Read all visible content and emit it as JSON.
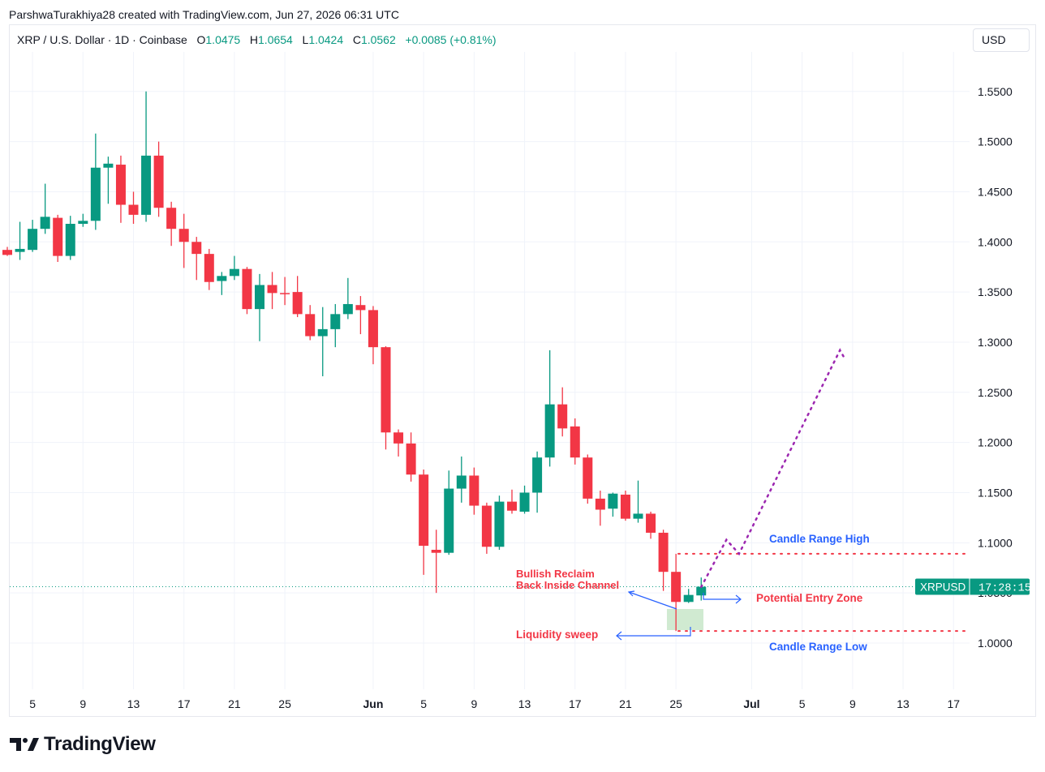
{
  "caption": "ParshwaTurakhiya28 created with TradingView.com, Jun 27, 2026 06:31 UTC",
  "legend": {
    "symbol": "XRP / U.S. Dollar · 1D · Coinbase",
    "o_label": "O",
    "o_value": "1.0475",
    "h_label": "H",
    "h_value": "1.0654",
    "l_label": "L",
    "l_value": "1.0424",
    "c_label": "C",
    "c_value": "1.0562",
    "change": "+0.0085 (+0.81%)"
  },
  "currency": "USD",
  "brand": "TradingView",
  "colors": {
    "up": "#089981",
    "down": "#f23645",
    "grid": "#f0f3fa",
    "axis_text": "#131722",
    "annotation_red": "#f23645",
    "annotation_blue": "#2962ff",
    "projection": "#9c27b0",
    "zone_fill": "#c8e6c9"
  },
  "chart_data": {
    "type": "candlestick",
    "ylim": [
      0.9,
      1.6
    ],
    "y_ticks": [
      "1.0000",
      "1.0500",
      "1.1000",
      "1.1500",
      "1.2000",
      "1.2500",
      "1.3000",
      "1.3500",
      "1.4000",
      "1.4500",
      "1.5000",
      "1.5500"
    ],
    "x_ticks": [
      "5",
      "9",
      "13",
      "17",
      "21",
      "25",
      "Jun",
      "5",
      "9",
      "13",
      "17",
      "21",
      "25",
      "Jul",
      "5",
      "9",
      "13",
      "17"
    ],
    "price_label": {
      "symbol": "XRPUSD",
      "countdown": "17:28:15",
      "price": "1.0562"
    },
    "candles": [
      {
        "date": "May 3",
        "o": 1.392,
        "h": 1.395,
        "l": 1.386,
        "c": 1.387
      },
      {
        "date": "May 4",
        "o": 1.39,
        "h": 1.42,
        "l": 1.382,
        "c": 1.393
      },
      {
        "date": "May 5",
        "o": 1.392,
        "h": 1.422,
        "l": 1.39,
        "c": 1.413
      },
      {
        "date": "May 6",
        "o": 1.413,
        "h": 1.458,
        "l": 1.408,
        "c": 1.425
      },
      {
        "date": "May 7",
        "o": 1.424,
        "h": 1.427,
        "l": 1.38,
        "c": 1.386
      },
      {
        "date": "May 8",
        "o": 1.386,
        "h": 1.426,
        "l": 1.382,
        "c": 1.418
      },
      {
        "date": "May 9",
        "o": 1.418,
        "h": 1.428,
        "l": 1.415,
        "c": 1.421
      },
      {
        "date": "May 10",
        "o": 1.421,
        "h": 1.508,
        "l": 1.412,
        "c": 1.474
      },
      {
        "date": "May 11",
        "o": 1.474,
        "h": 1.485,
        "l": 1.438,
        "c": 1.478
      },
      {
        "date": "May 12",
        "o": 1.477,
        "h": 1.486,
        "l": 1.419,
        "c": 1.437
      },
      {
        "date": "May 13",
        "o": 1.437,
        "h": 1.45,
        "l": 1.418,
        "c": 1.427
      },
      {
        "date": "May 14",
        "o": 1.427,
        "h": 1.55,
        "l": 1.42,
        "c": 1.486
      },
      {
        "date": "May 15",
        "o": 1.486,
        "h": 1.5,
        "l": 1.425,
        "c": 1.434
      },
      {
        "date": "May 16",
        "o": 1.434,
        "h": 1.44,
        "l": 1.396,
        "c": 1.413
      },
      {
        "date": "May 17",
        "o": 1.413,
        "h": 1.428,
        "l": 1.374,
        "c": 1.4
      },
      {
        "date": "May 18",
        "o": 1.4,
        "h": 1.405,
        "l": 1.362,
        "c": 1.388
      },
      {
        "date": "May 19",
        "o": 1.388,
        "h": 1.393,
        "l": 1.352,
        "c": 1.36
      },
      {
        "date": "May 20",
        "o": 1.361,
        "h": 1.37,
        "l": 1.347,
        "c": 1.366
      },
      {
        "date": "May 21",
        "o": 1.366,
        "h": 1.386,
        "l": 1.362,
        "c": 1.373
      },
      {
        "date": "May 22",
        "o": 1.373,
        "h": 1.375,
        "l": 1.328,
        "c": 1.333
      },
      {
        "date": "May 23",
        "o": 1.333,
        "h": 1.368,
        "l": 1.301,
        "c": 1.357
      },
      {
        "date": "May 24",
        "o": 1.357,
        "h": 1.37,
        "l": 1.333,
        "c": 1.349
      },
      {
        "date": "May 25",
        "o": 1.349,
        "h": 1.365,
        "l": 1.337,
        "c": 1.348
      },
      {
        "date": "May 26",
        "o": 1.35,
        "h": 1.366,
        "l": 1.325,
        "c": 1.328
      },
      {
        "date": "May 27",
        "o": 1.328,
        "h": 1.337,
        "l": 1.302,
        "c": 1.306
      },
      {
        "date": "May 28",
        "o": 1.306,
        "h": 1.335,
        "l": 1.266,
        "c": 1.313
      },
      {
        "date": "May 29",
        "o": 1.313,
        "h": 1.338,
        "l": 1.295,
        "c": 1.328
      },
      {
        "date": "May 30",
        "o": 1.328,
        "h": 1.364,
        "l": 1.323,
        "c": 1.338
      },
      {
        "date": "May 31",
        "o": 1.337,
        "h": 1.346,
        "l": 1.308,
        "c": 1.332
      },
      {
        "date": "Jun 1",
        "o": 1.332,
        "h": 1.336,
        "l": 1.278,
        "c": 1.295
      },
      {
        "date": "Jun 2",
        "o": 1.295,
        "h": 1.296,
        "l": 1.193,
        "c": 1.21
      },
      {
        "date": "Jun 3",
        "o": 1.21,
        "h": 1.213,
        "l": 1.186,
        "c": 1.199
      },
      {
        "date": "Jun 4",
        "o": 1.199,
        "h": 1.21,
        "l": 1.161,
        "c": 1.168
      },
      {
        "date": "Jun 5",
        "o": 1.168,
        "h": 1.173,
        "l": 1.068,
        "c": 1.097
      },
      {
        "date": "Jun 6",
        "o": 1.093,
        "h": 1.113,
        "l": 1.05,
        "c": 1.09
      },
      {
        "date": "Jun 7",
        "o": 1.09,
        "h": 1.172,
        "l": 1.088,
        "c": 1.154
      },
      {
        "date": "Jun 8",
        "o": 1.154,
        "h": 1.186,
        "l": 1.14,
        "c": 1.167
      },
      {
        "date": "Jun 9",
        "o": 1.167,
        "h": 1.175,
        "l": 1.128,
        "c": 1.137
      },
      {
        "date": "Jun 10",
        "o": 1.137,
        "h": 1.14,
        "l": 1.089,
        "c": 1.096
      },
      {
        "date": "Jun 11",
        "o": 1.096,
        "h": 1.147,
        "l": 1.093,
        "c": 1.141
      },
      {
        "date": "Jun 12",
        "o": 1.141,
        "h": 1.153,
        "l": 1.129,
        "c": 1.132
      },
      {
        "date": "Jun 13",
        "o": 1.131,
        "h": 1.157,
        "l": 1.129,
        "c": 1.15
      },
      {
        "date": "Jun 14",
        "o": 1.15,
        "h": 1.191,
        "l": 1.13,
        "c": 1.185
      },
      {
        "date": "Jun 15",
        "o": 1.185,
        "h": 1.292,
        "l": 1.176,
        "c": 1.238
      },
      {
        "date": "Jun 16",
        "o": 1.238,
        "h": 1.255,
        "l": 1.206,
        "c": 1.214
      },
      {
        "date": "Jun 17",
        "o": 1.216,
        "h": 1.224,
        "l": 1.178,
        "c": 1.185
      },
      {
        "date": "Jun 18",
        "o": 1.185,
        "h": 1.188,
        "l": 1.139,
        "c": 1.144
      },
      {
        "date": "Jun 19",
        "o": 1.144,
        "h": 1.152,
        "l": 1.117,
        "c": 1.133
      },
      {
        "date": "Jun 20",
        "o": 1.134,
        "h": 1.15,
        "l": 1.126,
        "c": 1.149
      },
      {
        "date": "Jun 21",
        "o": 1.148,
        "h": 1.152,
        "l": 1.122,
        "c": 1.124
      },
      {
        "date": "Jun 22",
        "o": 1.124,
        "h": 1.162,
        "l": 1.12,
        "c": 1.129
      },
      {
        "date": "Jun 23",
        "o": 1.129,
        "h": 1.131,
        "l": 1.104,
        "c": 1.11
      },
      {
        "date": "Jun 24",
        "o": 1.11,
        "h": 1.113,
        "l": 1.052,
        "c": 1.071
      },
      {
        "date": "Jun 25",
        "o": 1.071,
        "h": 1.089,
        "l": 1.012,
        "c": 1.041
      },
      {
        "date": "Jun 26",
        "o": 1.041,
        "h": 1.054,
        "l": 1.04,
        "c": 1.048
      },
      {
        "date": "Jun 27",
        "o": 1.0475,
        "h": 1.0654,
        "l": 1.0424,
        "c": 1.0562
      }
    ],
    "annotations": {
      "candle_range_high": "Candle Range High",
      "candle_range_low": "Candle Range Low",
      "bullish_line1": "Bullish Reclaim",
      "bullish_line2": "Back Inside Channel",
      "liquidity_sweep": "Liquidity sweep",
      "potential_entry": "Potential Entry Zone",
      "high_level": 1.089,
      "low_level": 1.012,
      "projection_path": [
        {
          "date": "Jun 27",
          "price": 1.056
        },
        {
          "date": "Jun 29",
          "price": 1.103
        },
        {
          "date": "Jun 30",
          "price": 1.089
        },
        {
          "date": "Jul 8",
          "price": 1.292
        },
        {
          "date": "Jul 8",
          "price": 1.282
        }
      ]
    }
  }
}
